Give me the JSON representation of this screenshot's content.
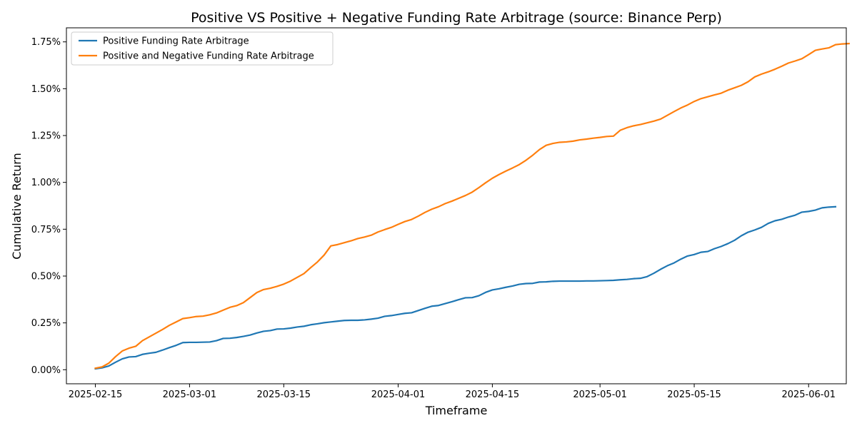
{
  "chart_data": {
    "type": "line",
    "title": "Positive VS Positive + Negative Funding Rate Arbitrage (source: Binance Perp)",
    "xlabel": "Timeframe",
    "ylabel": "Cumulative Return",
    "x_start": "2025-02-15",
    "x_end": "2025-06-04",
    "xlim_days": [
      -4.3,
      111.6
    ],
    "ylim": [
      -0.00075,
      0.01825
    ],
    "x_ticks": [
      {
        "label": "2025-02-15",
        "day": 0
      },
      {
        "label": "2025-03-01",
        "day": 14
      },
      {
        "label": "2025-03-15",
        "day": 28
      },
      {
        "label": "2025-04-01",
        "day": 45
      },
      {
        "label": "2025-04-15",
        "day": 59
      },
      {
        "label": "2025-05-01",
        "day": 75
      },
      {
        "label": "2025-05-15",
        "day": 89
      },
      {
        "label": "2025-06-01",
        "day": 106
      }
    ],
    "y_ticks": [
      {
        "label": "0.00%",
        "value": 0
      },
      {
        "label": "0.25%",
        "value": 0.0025
      },
      {
        "label": "0.50%",
        "value": 0.005
      },
      {
        "label": "0.75%",
        "value": 0.0075
      },
      {
        "label": "1.00%",
        "value": 0.01
      },
      {
        "label": "1.25%",
        "value": 0.0125
      },
      {
        "label": "1.50%",
        "value": 0.015
      },
      {
        "label": "1.75%",
        "value": 0.0175
      }
    ],
    "legend_position": "top-left",
    "series": [
      {
        "name": "Positive Funding Rate Arbitrage",
        "color": "#1f77b4",
        "points": [
          [
            0,
            5e-05
          ],
          [
            1,
            0.0001
          ],
          [
            2,
            0.0002
          ],
          [
            3,
            0.0004
          ],
          [
            4,
            0.00058
          ],
          [
            5,
            0.00068
          ],
          [
            6,
            0.0007
          ],
          [
            7,
            0.00082
          ],
          [
            8,
            0.00088
          ],
          [
            9,
            0.00093
          ],
          [
            10,
            0.00105
          ],
          [
            11,
            0.00118
          ],
          [
            12,
            0.0013
          ],
          [
            13,
            0.00145
          ],
          [
            14,
            0.00146
          ],
          [
            15,
            0.00146
          ],
          [
            16,
            0.00147
          ],
          [
            17,
            0.00148
          ],
          [
            18,
            0.00155
          ],
          [
            19,
            0.00167
          ],
          [
            20,
            0.00168
          ],
          [
            21,
            0.00172
          ],
          [
            22,
            0.00178
          ],
          [
            23,
            0.00185
          ],
          [
            24,
            0.00196
          ],
          [
            25,
            0.00205
          ],
          [
            26,
            0.00209
          ],
          [
            27,
            0.00217
          ],
          [
            28,
            0.00218
          ],
          [
            29,
            0.00222
          ],
          [
            30,
            0.00228
          ],
          [
            31,
            0.00232
          ],
          [
            32,
            0.0024
          ],
          [
            33,
            0.00245
          ],
          [
            34,
            0.00251
          ],
          [
            35,
            0.00255
          ],
          [
            36,
            0.00259
          ],
          [
            37,
            0.00263
          ],
          [
            38,
            0.00264
          ],
          [
            39,
            0.00264
          ],
          [
            40,
            0.00266
          ],
          [
            41,
            0.0027
          ],
          [
            42,
            0.00275
          ],
          [
            43,
            0.00285
          ],
          [
            44,
            0.00289
          ],
          [
            45,
            0.00295
          ],
          [
            46,
            0.00301
          ],
          [
            47,
            0.00304
          ],
          [
            48,
            0.00316
          ],
          [
            49,
            0.00328
          ],
          [
            50,
            0.00339
          ],
          [
            51,
            0.00343
          ],
          [
            52,
            0.00353
          ],
          [
            53,
            0.00363
          ],
          [
            54,
            0.00374
          ],
          [
            55,
            0.00384
          ],
          [
            56,
            0.00385
          ],
          [
            57,
            0.00395
          ],
          [
            58,
            0.00413
          ],
          [
            59,
            0.00426
          ],
          [
            60,
            0.00432
          ],
          [
            61,
            0.0044
          ],
          [
            62,
            0.00447
          ],
          [
            63,
            0.00456
          ],
          [
            64,
            0.0046
          ],
          [
            65,
            0.00461
          ],
          [
            66,
            0.00468
          ],
          [
            67,
            0.00469
          ],
          [
            68,
            0.00472
          ],
          [
            69,
            0.00473
          ],
          [
            70,
            0.00473
          ],
          [
            71,
            0.00473
          ],
          [
            72,
            0.00473
          ],
          [
            73,
            0.00474
          ],
          [
            74,
            0.00474
          ],
          [
            75,
            0.00475
          ],
          [
            76,
            0.00476
          ],
          [
            77,
            0.00477
          ],
          [
            78,
            0.0048
          ],
          [
            79,
            0.00482
          ],
          [
            80,
            0.00486
          ],
          [
            81,
            0.00488
          ],
          [
            82,
            0.00497
          ],
          [
            83,
            0.00515
          ],
          [
            84,
            0.00536
          ],
          [
            85,
            0.00555
          ],
          [
            86,
            0.0057
          ],
          [
            87,
            0.0059
          ],
          [
            88,
            0.00607
          ],
          [
            89,
            0.00615
          ],
          [
            90,
            0.00627
          ],
          [
            91,
            0.00631
          ],
          [
            92,
            0.00646
          ],
          [
            93,
            0.00658
          ],
          [
            94,
            0.00673
          ],
          [
            95,
            0.00691
          ],
          [
            96,
            0.00715
          ],
          [
            97,
            0.00734
          ],
          [
            98,
            0.00746
          ],
          [
            99,
            0.0076
          ],
          [
            100,
            0.00781
          ],
          [
            101,
            0.00795
          ],
          [
            102,
            0.00803
          ],
          [
            103,
            0.00815
          ],
          [
            104,
            0.00825
          ],
          [
            105,
            0.00841
          ],
          [
            106,
            0.00845
          ],
          [
            107,
            0.00852
          ],
          [
            108,
            0.00864
          ],
          [
            109,
            0.00868
          ],
          [
            110,
            0.0087
          ]
        ]
      },
      {
        "name": "Positive and Negative Funding Rate Arbitrage",
        "color": "#ff7f0e",
        "points": [
          [
            0,
            8e-05
          ],
          [
            1,
            0.00015
          ],
          [
            2,
            0.00035
          ],
          [
            3,
            0.0007
          ],
          [
            4,
            0.001
          ],
          [
            5,
            0.00115
          ],
          [
            6,
            0.00125
          ],
          [
            7,
            0.00155
          ],
          [
            8,
            0.00175
          ],
          [
            9,
            0.00195
          ],
          [
            10,
            0.00215
          ],
          [
            11,
            0.00237
          ],
          [
            12,
            0.00255
          ],
          [
            13,
            0.00273
          ],
          [
            14,
            0.00278
          ],
          [
            15,
            0.00284
          ],
          [
            16,
            0.00286
          ],
          [
            17,
            0.00293
          ],
          [
            18,
            0.00303
          ],
          [
            19,
            0.00318
          ],
          [
            20,
            0.00333
          ],
          [
            21,
            0.00342
          ],
          [
            22,
            0.00358
          ],
          [
            23,
            0.00385
          ],
          [
            24,
            0.00412
          ],
          [
            25,
            0.00428
          ],
          [
            26,
            0.00435
          ],
          [
            27,
            0.00445
          ],
          [
            28,
            0.00457
          ],
          [
            29,
            0.00473
          ],
          [
            30,
            0.00493
          ],
          [
            31,
            0.00513
          ],
          [
            32,
            0.00545
          ],
          [
            33,
            0.00575
          ],
          [
            34,
            0.00612
          ],
          [
            35,
            0.00661
          ],
          [
            36,
            0.00668
          ],
          [
            37,
            0.00678
          ],
          [
            38,
            0.00688
          ],
          [
            39,
            0.007
          ],
          [
            40,
            0.00708
          ],
          [
            41,
            0.00718
          ],
          [
            42,
            0.00735
          ],
          [
            43,
            0.00748
          ],
          [
            44,
            0.0076
          ],
          [
            45,
            0.00776
          ],
          [
            46,
            0.00791
          ],
          [
            47,
            0.00802
          ],
          [
            48,
            0.0082
          ],
          [
            49,
            0.0084
          ],
          [
            50,
            0.00857
          ],
          [
            51,
            0.0087
          ],
          [
            52,
            0.00887
          ],
          [
            53,
            0.009
          ],
          [
            54,
            0.00915
          ],
          [
            55,
            0.0093
          ],
          [
            56,
            0.00948
          ],
          [
            57,
            0.00972
          ],
          [
            58,
            0.00998
          ],
          [
            59,
            0.01022
          ],
          [
            60,
            0.01042
          ],
          [
            61,
            0.0106
          ],
          [
            62,
            0.01077
          ],
          [
            63,
            0.01095
          ],
          [
            64,
            0.01118
          ],
          [
            65,
            0.01145
          ],
          [
            66,
            0.01175
          ],
          [
            67,
            0.01198
          ],
          [
            68,
            0.01208
          ],
          [
            69,
            0.01214
          ],
          [
            70,
            0.01216
          ],
          [
            71,
            0.0122
          ],
          [
            72,
            0.01227
          ],
          [
            73,
            0.01231
          ],
          [
            74,
            0.01236
          ],
          [
            75,
            0.0124
          ],
          [
            76,
            0.01245
          ],
          [
            77,
            0.01247
          ],
          [
            78,
            0.01278
          ],
          [
            79,
            0.01292
          ],
          [
            80,
            0.01302
          ],
          [
            81,
            0.01309
          ],
          [
            82,
            0.01318
          ],
          [
            83,
            0.01327
          ],
          [
            84,
            0.01338
          ],
          [
            85,
            0.01358
          ],
          [
            86,
            0.01378
          ],
          [
            87,
            0.01397
          ],
          [
            88,
            0.01413
          ],
          [
            89,
            0.01432
          ],
          [
            90,
            0.01447
          ],
          [
            91,
            0.01457
          ],
          [
            92,
            0.01467
          ],
          [
            93,
            0.01476
          ],
          [
            94,
            0.01492
          ],
          [
            95,
            0.01505
          ],
          [
            96,
            0.01518
          ],
          [
            97,
            0.01537
          ],
          [
            98,
            0.01563
          ],
          [
            99,
            0.01578
          ],
          [
            100,
            0.0159
          ],
          [
            101,
            0.01604
          ],
          [
            102,
            0.0162
          ],
          [
            103,
            0.01637
          ],
          [
            104,
            0.01648
          ],
          [
            105,
            0.0166
          ],
          [
            106,
            0.01682
          ],
          [
            107,
            0.01705
          ],
          [
            108,
            0.01712
          ],
          [
            109,
            0.01718
          ],
          [
            110,
            0.01735
          ],
          [
            111,
            0.01739
          ],
          [
            112,
            0.01741
          ]
        ]
      }
    ]
  }
}
